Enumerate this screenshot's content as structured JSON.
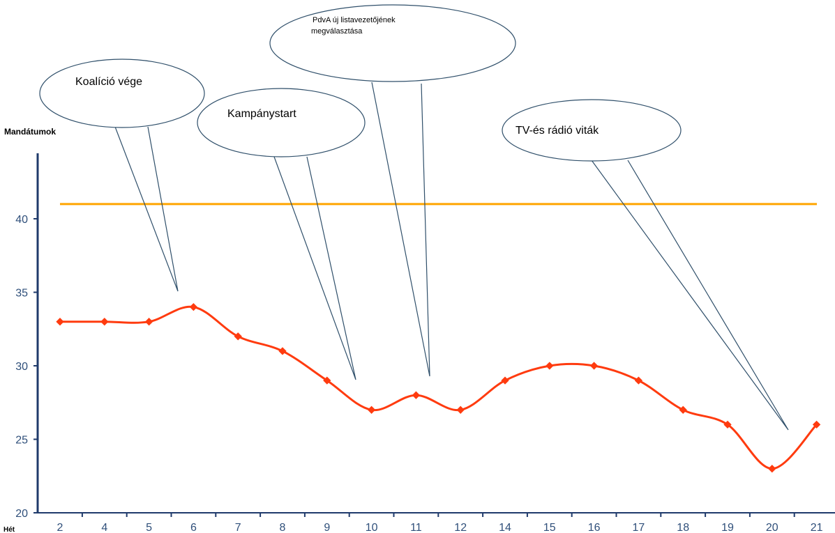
{
  "chart_data": {
    "type": "line",
    "title": "",
    "ylabel": "Mandátumok",
    "xlabel": "Hét",
    "categories": [
      "2",
      "4",
      "5",
      "6",
      "7",
      "8",
      "9",
      "10",
      "11",
      "12",
      "14",
      "15",
      "16",
      "17",
      "18",
      "19",
      "20",
      "21"
    ],
    "ylim": [
      20,
      45
    ],
    "yticks": [
      20,
      25,
      30,
      35,
      40
    ],
    "series": [
      {
        "values": [
          33,
          33,
          33,
          34,
          32,
          31,
          29,
          27,
          28,
          27,
          29,
          30,
          30,
          29,
          27,
          26,
          23,
          26
        ],
        "color": "#ff3b0f"
      }
    ],
    "reference_line": {
      "value": 41,
      "color": "#ffa500"
    },
    "annotations": [
      {
        "text": "Koalíció vége",
        "size": "large"
      },
      {
        "text": "Kampánystart",
        "size": "large"
      },
      {
        "text_lines": [
          "PdvA új listavezetőjének",
          "megválasztása"
        ],
        "size": "small"
      },
      {
        "text": "TV-és rádió viták",
        "size": "large"
      }
    ],
    "grid": false,
    "axis_color": "#1f3a6b"
  }
}
